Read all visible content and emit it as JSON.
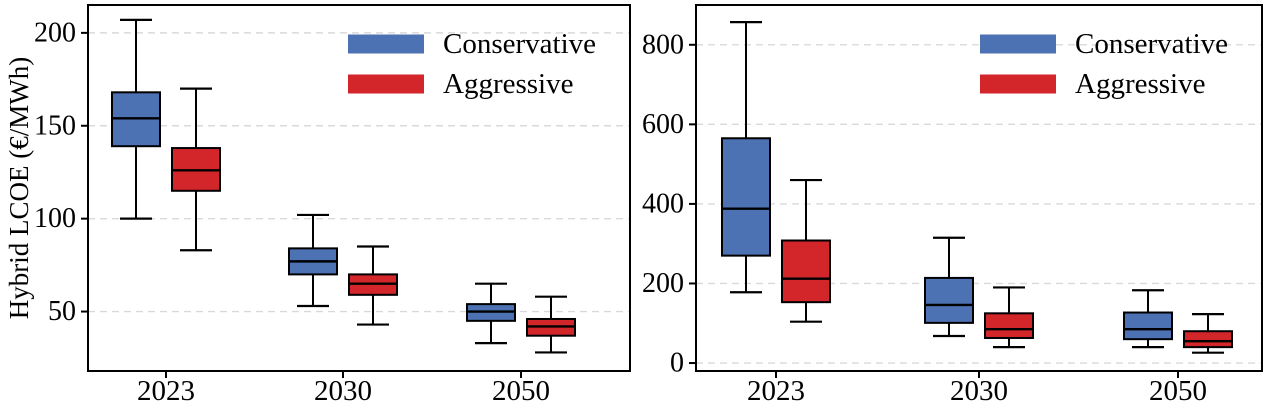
{
  "figure": {
    "title": "",
    "background": "#ffffff"
  },
  "legend": {
    "position": "upper-right",
    "items": [
      {
        "label": "Conservative",
        "color": "#4C72B4"
      },
      {
        "label": "Aggressive",
        "color": "#D2262B"
      }
    ]
  },
  "chart_data": [
    {
      "type": "boxplot",
      "panel": "left",
      "title": "",
      "xlabel": "",
      "ylabel": "Hybrid LCOE (€/MWh)",
      "categories": [
        "2023",
        "2030",
        "2050"
      ],
      "yticks": [
        50,
        100,
        150,
        200
      ],
      "ylim": [
        18,
        215
      ],
      "grid": "horizontal-dashed",
      "legend_position": "upper-right",
      "edge_color": "#000000",
      "stats_order": [
        "whisker_low",
        "q1",
        "median",
        "q3",
        "whisker_high"
      ],
      "series": [
        {
          "name": "Conservative",
          "color": "#4C72B4",
          "values": [
            [
              100,
              139,
              154,
              168,
              207
            ],
            [
              53,
              70,
              77,
              84,
              102
            ],
            [
              33,
              45,
              50,
              54,
              65
            ]
          ]
        },
        {
          "name": "Aggressive",
          "color": "#D2262B",
          "values": [
            [
              83,
              115,
              126,
              138,
              170
            ],
            [
              43,
              59,
              65,
              70,
              85
            ],
            [
              28,
              37,
              42,
              46,
              58
            ]
          ]
        }
      ]
    },
    {
      "type": "boxplot",
      "panel": "right",
      "title": "",
      "xlabel": "",
      "ylabel": "",
      "categories": [
        "2023",
        "2030",
        "2050"
      ],
      "yticks": [
        0,
        200,
        400,
        600,
        800
      ],
      "ylim": [
        -20,
        900
      ],
      "grid": "horizontal-dashed",
      "legend_position": "upper-right",
      "edge_color": "#000000",
      "stats_order": [
        "whisker_low",
        "q1",
        "median",
        "q3",
        "whisker_high"
      ],
      "series": [
        {
          "name": "Conservative",
          "color": "#4C72B4",
          "values": [
            [
              178,
              270,
              388,
              565,
              857
            ],
            [
              68,
              101,
              146,
              214,
              315
            ],
            [
              40,
              60,
              85,
              127,
              183
            ]
          ]
        },
        {
          "name": "Aggressive",
          "color": "#D2262B",
          "values": [
            [
              104,
              153,
              212,
              308,
              460
            ],
            [
              40,
              63,
              85,
              125,
              190
            ],
            [
              26,
              40,
              55,
              80,
              123
            ]
          ]
        }
      ]
    }
  ]
}
